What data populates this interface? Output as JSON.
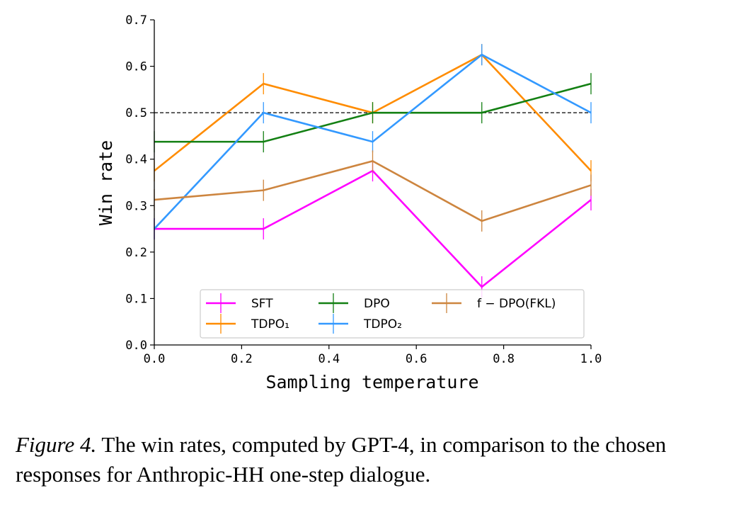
{
  "chart_data": {
    "type": "line",
    "xlabel": "Sampling temperature",
    "ylabel": "Win rate",
    "xlim": [
      0.0,
      1.0
    ],
    "ylim": [
      0.0,
      0.7
    ],
    "xticks": [
      "0.0",
      "0.2",
      "0.4",
      "0.6",
      "0.8",
      "1.0"
    ],
    "yticks": [
      "0.0",
      "0.1",
      "0.2",
      "0.3",
      "0.4",
      "0.5",
      "0.6",
      "0.7"
    ],
    "x": [
      0.0,
      0.25,
      0.5,
      0.75,
      1.0
    ],
    "reference_line": {
      "y": 0.5,
      "style": "dashed",
      "color": "#000000"
    },
    "legend_position": "bottom-center",
    "grid": false,
    "series": [
      {
        "name": "SFT",
        "color": "#ff00ff",
        "values": [
          0.25,
          0.25,
          0.375,
          0.125,
          0.3125
        ]
      },
      {
        "name": "TDPO₁",
        "color": "#ff8c00",
        "values": [
          0.375,
          0.5625,
          0.5,
          0.625,
          0.375
        ]
      },
      {
        "name": "DPO",
        "color": "#138013",
        "values": [
          0.4375,
          0.4375,
          0.5,
          0.5,
          0.5625
        ]
      },
      {
        "name": "TDPO₂",
        "color": "#3399ff",
        "values": [
          0.25,
          0.5,
          0.4375,
          0.625,
          0.5
        ]
      },
      {
        "name": "f − DPO(FKL)",
        "color": "#cd853f",
        "values": [
          0.3125,
          0.333,
          0.396,
          0.267,
          0.344
        ]
      }
    ]
  },
  "caption": {
    "label": "Figure 4.",
    "text": " The win rates, computed by GPT-4, in comparison to the chosen responses for Anthropic-HH one-step dialogue."
  }
}
